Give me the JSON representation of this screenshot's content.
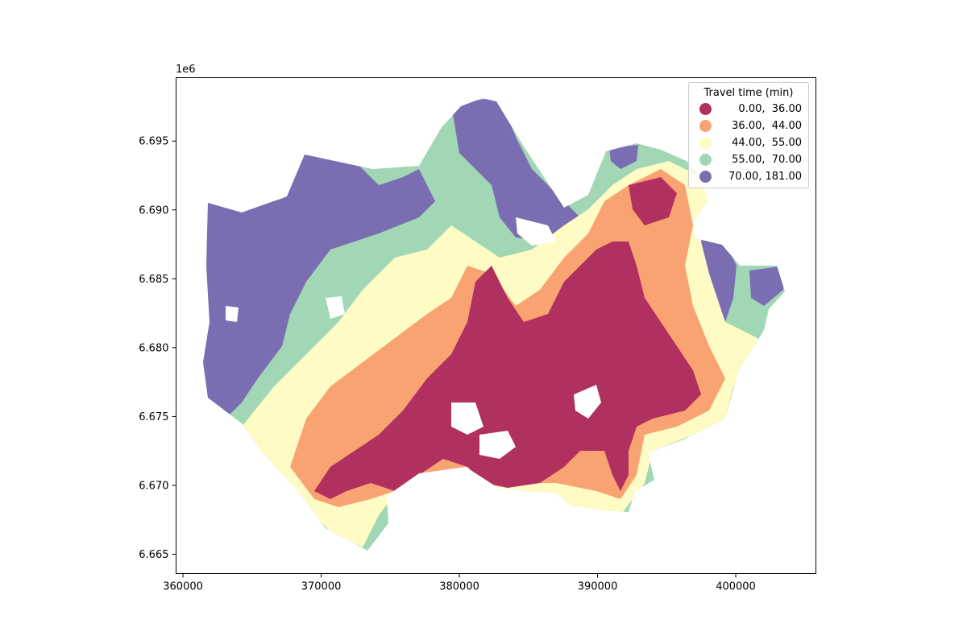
{
  "chart_data": {
    "type": "heatmap",
    "title": "",
    "xlabel": "",
    "ylabel": "",
    "xlim": [
      359500,
      405800
    ],
    "ylim": [
      6663600,
      6699600
    ],
    "x_ticks": [
      360000,
      370000,
      380000,
      390000,
      400000
    ],
    "x_tick_labels": [
      "360000",
      "370000",
      "380000",
      "390000",
      "400000"
    ],
    "y_ticks": [
      6665000,
      6670000,
      6675000,
      6680000,
      6685000,
      6690000,
      6695000
    ],
    "y_tick_labels": [
      "6.665",
      "6.670",
      "6.675",
      "6.680",
      "6.685",
      "6.690",
      "6.695"
    ],
    "y_offset_label": "1e6",
    "legend": {
      "title": "Travel time (min)",
      "placement": "top-right",
      "classes": [
        {
          "label": " 0.00,  36.00",
          "color": "#b0305f"
        },
        {
          "label": "36.00,  44.00",
          "color": "#f9a272"
        },
        {
          "label": "44.00,  55.00",
          "color": "#fefcc4"
        },
        {
          "label": "55.00,  70.00",
          "color": "#a1d7b4"
        },
        {
          "label": "70.00, 181.00",
          "color": "#7b6db2"
        }
      ]
    }
  }
}
